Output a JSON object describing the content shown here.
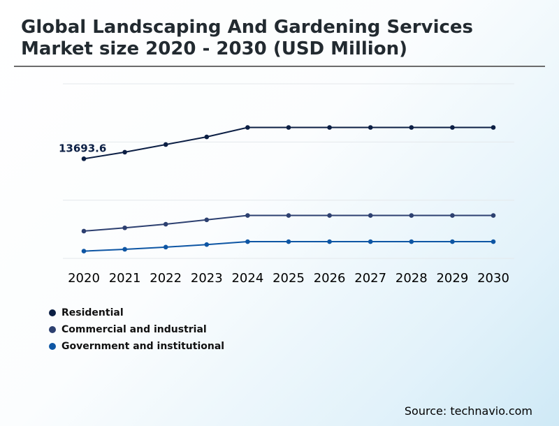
{
  "title": "Global Landscaping And Gardening Services Market size 2020 - 2030 (USD Million)",
  "source": "Source: technavio.com",
  "chart_data": {
    "type": "line",
    "title": "Global Landscaping And Gardening Services Market size 2020 - 2030 (USD Million)",
    "xlabel": "",
    "ylabel": "",
    "x": [
      "2020",
      "2021",
      "2022",
      "2023",
      "2024",
      "2025",
      "2026",
      "2027",
      "2028",
      "2029",
      "2030"
    ],
    "ylim": [
      0,
      24000
    ],
    "grid": true,
    "legend": "bottom-left",
    "annotations": [
      {
        "series": 0,
        "index": 0,
        "text": "13693.6"
      }
    ],
    "series": [
      {
        "name": "Residential",
        "color": "#0c1f44",
        "values": [
          13693.6,
          14600,
          15650,
          16700,
          18000,
          18000,
          18000,
          18000,
          18000,
          18000,
          18000
        ]
      },
      {
        "name": "Commercial and industrial",
        "color": "#2d4070",
        "values": [
          3750,
          4200,
          4700,
          5300,
          5900,
          5900,
          5900,
          5900,
          5900,
          5900,
          5900
        ]
      },
      {
        "name": "Government and institutional",
        "color": "#0e56a4",
        "values": [
          1000,
          1250,
          1550,
          1900,
          2300,
          2300,
          2300,
          2300,
          2300,
          2300,
          2300
        ]
      }
    ]
  }
}
